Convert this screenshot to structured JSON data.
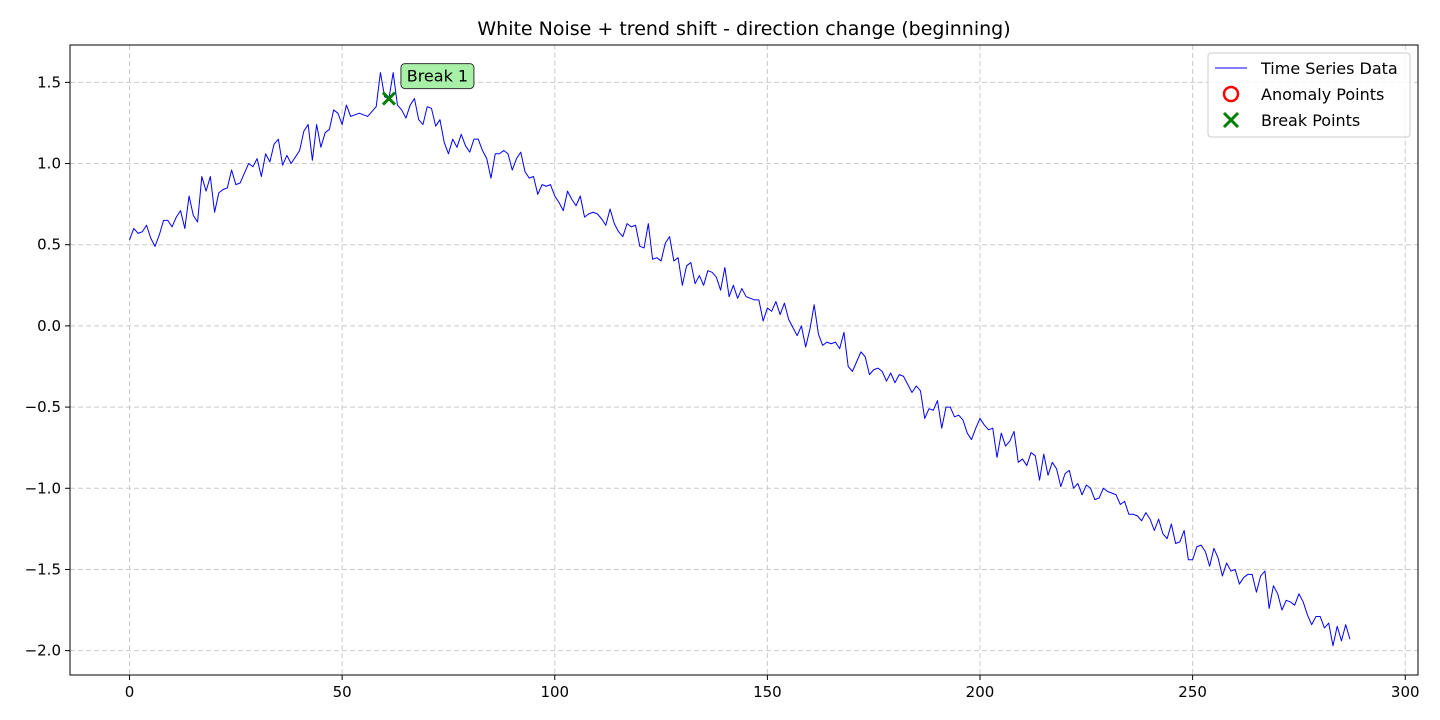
{
  "chart_data": {
    "type": "line",
    "title": "White Noise + trend shift - direction change (beginning)",
    "xlabel": "",
    "ylabel": "",
    "xlim": [
      -14,
      303
    ],
    "ylim": [
      -2.15,
      1.73
    ],
    "xticks": [
      0,
      50,
      100,
      150,
      200,
      250,
      300
    ],
    "xtick_labels": [
      "0",
      "50",
      "100",
      "150",
      "200",
      "250",
      "300"
    ],
    "yticks": [
      1.5,
      1.0,
      0.5,
      0.0,
      -0.5,
      -1.0,
      -1.5,
      -2.0
    ],
    "ytick_labels": [
      "1.5",
      "1.0",
      "0.5",
      "0.0",
      "−0.5",
      "−1.0",
      "−1.5",
      "−2.0"
    ],
    "grid": true,
    "legend": {
      "placement": "top-right",
      "entries": [
        {
          "label": "Time Series Data",
          "marker": "line",
          "color": "#0000ff"
        },
        {
          "label": "Anomaly Points",
          "marker": "circle",
          "color": "#ff0000"
        },
        {
          "label": "Break Points",
          "marker": "x",
          "color": "#008000"
        }
      ]
    },
    "series": [
      {
        "name": "Time Series Data",
        "color": "#0000ff",
        "x_start": 0,
        "x_step": 1,
        "values": [
          0.53,
          0.6,
          0.57,
          0.58,
          0.62,
          0.54,
          0.49,
          0.56,
          0.65,
          0.65,
          0.61,
          0.67,
          0.71,
          0.6,
          0.8,
          0.68,
          0.64,
          0.92,
          0.83,
          0.92,
          0.7,
          0.82,
          0.84,
          0.85,
          0.96,
          0.87,
          0.88,
          0.94,
          1.0,
          0.98,
          1.03,
          0.92,
          1.06,
          1.01,
          1.12,
          1.15,
          0.99,
          1.05,
          1.0,
          1.04,
          1.08,
          1.2,
          1.24,
          1.02,
          1.24,
          1.1,
          1.19,
          1.21,
          1.33,
          1.31,
          1.24,
          1.36,
          1.29,
          1.3,
          1.31,
          1.3,
          1.29,
          1.32,
          1.35,
          1.56,
          1.41,
          1.4,
          1.56,
          1.36,
          1.33,
          1.28,
          1.36,
          1.4,
          1.27,
          1.24,
          1.35,
          1.34,
          1.23,
          1.27,
          1.13,
          1.06,
          1.15,
          1.1,
          1.18,
          1.11,
          1.07,
          1.15,
          1.15,
          1.08,
          1.03,
          0.91,
          1.06,
          1.06,
          1.08,
          1.06,
          0.96,
          1.03,
          1.07,
          0.95,
          0.91,
          0.92,
          0.81,
          0.87,
          0.86,
          0.87,
          0.8,
          0.76,
          0.71,
          0.83,
          0.78,
          0.74,
          0.8,
          0.67,
          0.69,
          0.7,
          0.69,
          0.66,
          0.62,
          0.72,
          0.63,
          0.58,
          0.55,
          0.63,
          0.61,
          0.62,
          0.49,
          0.48,
          0.63,
          0.41,
          0.42,
          0.4,
          0.51,
          0.55,
          0.4,
          0.42,
          0.25,
          0.37,
          0.39,
          0.26,
          0.31,
          0.25,
          0.34,
          0.33,
          0.3,
          0.22,
          0.36,
          0.18,
          0.25,
          0.17,
          0.23,
          0.18,
          0.17,
          0.16,
          0.16,
          0.03,
          0.11,
          0.09,
          0.15,
          0.07,
          0.14,
          0.04,
          -0.01,
          -0.06,
          0.0,
          -0.13,
          -0.02,
          0.13,
          -0.05,
          -0.12,
          -0.1,
          -0.11,
          -0.1,
          -0.14,
          -0.04,
          -0.25,
          -0.28,
          -0.22,
          -0.16,
          -0.19,
          -0.3,
          -0.27,
          -0.26,
          -0.28,
          -0.34,
          -0.29,
          -0.35,
          -0.3,
          -0.31,
          -0.36,
          -0.41,
          -0.37,
          -0.4,
          -0.57,
          -0.51,
          -0.52,
          -0.46,
          -0.63,
          -0.5,
          -0.5,
          -0.56,
          -0.55,
          -0.58,
          -0.66,
          -0.7,
          -0.63,
          -0.57,
          -0.61,
          -0.64,
          -0.63,
          -0.81,
          -0.66,
          -0.74,
          -0.71,
          -0.65,
          -0.84,
          -0.82,
          -0.86,
          -0.78,
          -0.8,
          -0.95,
          -0.79,
          -0.92,
          -0.84,
          -0.88,
          -0.99,
          -0.91,
          -0.89,
          -1.0,
          -0.97,
          -1.04,
          -0.98,
          -1.0,
          -1.07,
          -1.06,
          -1.0,
          -1.02,
          -1.03,
          -1.04,
          -1.1,
          -1.08,
          -1.16,
          -1.16,
          -1.17,
          -1.2,
          -1.15,
          -1.19,
          -1.26,
          -1.19,
          -1.28,
          -1.31,
          -1.22,
          -1.34,
          -1.33,
          -1.26,
          -1.44,
          -1.44,
          -1.36,
          -1.35,
          -1.39,
          -1.48,
          -1.37,
          -1.43,
          -1.54,
          -1.46,
          -1.51,
          -1.5,
          -1.59,
          -1.55,
          -1.53,
          -1.53,
          -1.64,
          -1.54,
          -1.51,
          -1.74,
          -1.6,
          -1.65,
          -1.75,
          -1.69,
          -1.7,
          -1.72,
          -1.65,
          -1.7,
          -1.78,
          -1.84,
          -1.79,
          -1.79,
          -1.86,
          -1.83,
          -1.97,
          -1.85,
          -1.94,
          -1.84,
          -1.93
        ]
      }
    ],
    "break_points": [
      {
        "x": 61,
        "y": 1.4,
        "label": "Break 1"
      }
    ],
    "anomaly_points": [],
    "annotation_style": {
      "box_fill": "#a8f0a8",
      "box_stroke": "#333333"
    },
    "grid_color": "#cccccc"
  }
}
